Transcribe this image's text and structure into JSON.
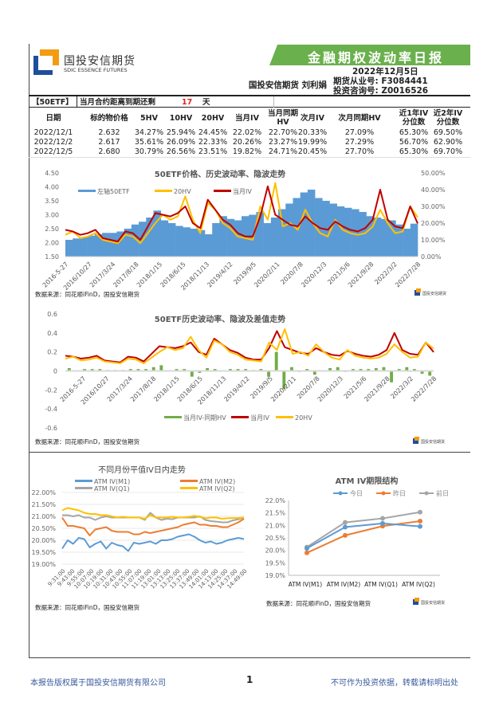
{
  "header": {
    "company_cn": "国投安信期货",
    "company_en": "SDIC ESSENCE FUTURES",
    "report_title": "金融期权波动率日报",
    "date": "2022年12月5日",
    "author": "国投安信期货 刘利娟",
    "license1": "期货从业号: F3084441",
    "license2": "投资咨询号: Z0016526"
  },
  "summary": {
    "underlying": "【50ETF】",
    "days_label": "当月合约距离到期还剩",
    "days": "17",
    "days_unit": "天",
    "accent": "#e02020"
  },
  "table": {
    "columns": [
      "日期",
      "标的物价格",
      "5HV",
      "10HV",
      "20HV",
      "当月IV",
      "当月同期HV",
      "次月IV",
      "次月同期HV",
      "近1年IV分位数",
      "近2年IV分位数"
    ],
    "rows": [
      [
        "2022/12/1",
        "2.632",
        "34.27%",
        "25.94%",
        "24.45%",
        "22.02%",
        "22.70%",
        "20.33%",
        "27.09%",
        "65.30%",
        "69.50%"
      ],
      [
        "2022/12/2",
        "2.617",
        "35.61%",
        "26.09%",
        "22.33%",
        "20.26%",
        "23.27%",
        "19.99%",
        "27.29%",
        "56.70%",
        "62.90%"
      ],
      [
        "2022/12/5",
        "2.680",
        "30.79%",
        "26.56%",
        "23.51%",
        "19.82%",
        "24.71%",
        "20.45%",
        "27.70%",
        "65.30%",
        "69.70%"
      ]
    ]
  },
  "source": "数据来源：同花顺iFinD，国投安信期货",
  "chart_data": [
    {
      "type": "bar+line",
      "title": "50ETF价格、历史波动率、隐波走势",
      "ylim_left": [
        1.5,
        4.5
      ],
      "ylim_right": [
        0,
        0.5
      ],
      "yticks_left": [
        "1.50",
        "2.00",
        "2.50",
        "3.00",
        "3.50",
        "4.00",
        "4.50"
      ],
      "yticks_right": [
        "0.00%",
        "10.00%",
        "20.00%",
        "30.00%",
        "40.00%",
        "50.00%"
      ],
      "xticks": [
        "2016-5-27",
        "2016/10/27",
        "2017/3/24",
        "2017/8/18",
        "2018/1/15",
        "2018/6/15",
        "2018/11/13",
        "2019/4/12",
        "2019/9/5",
        "2020/2/11",
        "2020/7/8",
        "2020/12/3",
        "2021/5/6",
        "2021/9/28",
        "2022/3/2",
        "2022/7/28"
      ],
      "series": [
        {
          "name": "左轴50ETF",
          "color": "#5b9bd5",
          "values": [
            2.1,
            2.15,
            2.2,
            2.25,
            2.3,
            2.35,
            2.35,
            2.4,
            2.5,
            2.65,
            2.75,
            2.9,
            3.15,
            2.8,
            2.7,
            2.6,
            2.55,
            2.5,
            2.45,
            2.3,
            2.7,
            2.95,
            2.85,
            2.8,
            2.95,
            3.0,
            3.1,
            2.7,
            2.9,
            3.2,
            3.4,
            3.6,
            3.8,
            3.9,
            3.6,
            3.5,
            3.4,
            3.3,
            3.25,
            3.2,
            3.1,
            2.95,
            2.9,
            2.85,
            2.8,
            2.65,
            2.5,
            2.68
          ]
        },
        {
          "name": "20HV",
          "color": "#ffc000",
          "values": [
            0.13,
            0.15,
            0.11,
            0.12,
            0.14,
            0.1,
            0.09,
            0.08,
            0.13,
            0.12,
            0.08,
            0.14,
            0.2,
            0.25,
            0.22,
            0.24,
            0.36,
            0.22,
            0.14,
            0.32,
            0.28,
            0.2,
            0.17,
            0.12,
            0.11,
            0.1,
            0.3,
            0.22,
            0.44,
            0.18,
            0.2,
            0.16,
            0.28,
            0.2,
            0.14,
            0.12,
            0.22,
            0.16,
            0.14,
            0.13,
            0.14,
            0.18,
            0.28,
            0.2,
            0.14,
            0.15,
            0.3,
            0.235
          ]
        },
        {
          "name": "当月IV",
          "color": "#c00000",
          "values": [
            0.16,
            0.15,
            0.13,
            0.14,
            0.16,
            0.11,
            0.1,
            0.09,
            0.15,
            0.14,
            0.1,
            0.18,
            0.26,
            0.25,
            0.24,
            0.26,
            0.3,
            0.2,
            0.17,
            0.34,
            0.28,
            0.22,
            0.19,
            0.14,
            0.12,
            0.12,
            0.24,
            0.42,
            0.25,
            0.22,
            0.19,
            0.18,
            0.24,
            0.2,
            0.17,
            0.16,
            0.21,
            0.18,
            0.16,
            0.15,
            0.17,
            0.22,
            0.4,
            0.22,
            0.18,
            0.17,
            0.3,
            0.198
          ]
        }
      ]
    },
    {
      "type": "bar+line",
      "title": "50ETF历史波动率、隐波及差值走势",
      "ylim": [
        -0.6,
        0.6
      ],
      "yticks": [
        "-0.6",
        "-0.4",
        "-0.2",
        "0",
        "0.2",
        "0.4",
        "0.6"
      ],
      "xticks": [
        "2016-5-27",
        "2016/10/27",
        "2017/3/24",
        "2017/8/18",
        "2018/1/15",
        "2018/6/15",
        "2018/11/13",
        "2019/4/12",
        "2019/9/5",
        "2020/2/11",
        "2020/7/8",
        "2020/12/3",
        "2021/5/6",
        "2021/9/28",
        "2022/3/2",
        "2022/7/28"
      ],
      "series": [
        {
          "name": "当月IV-同期HV",
          "color": "#70ad47",
          "values": [
            0.03,
            0.0,
            0.02,
            0.02,
            0.02,
            0.01,
            0.01,
            0.01,
            0.02,
            0.02,
            0.02,
            0.04,
            0.06,
            0.0,
            0.02,
            0.02,
            -0.06,
            -0.02,
            0.03,
            0.02,
            0.0,
            0.02,
            0.02,
            0.02,
            0.01,
            0.02,
            -0.06,
            0.2,
            -0.19,
            0.04,
            -0.01,
            0.02,
            -0.04,
            0.0,
            0.03,
            0.04,
            -0.01,
            0.02,
            0.02,
            0.02,
            0.03,
            0.04,
            -0.12,
            0.02,
            0.04,
            0.02,
            -0.03,
            -0.05
          ]
        },
        {
          "name": "当月IV",
          "color": "#c00000",
          "ref": "chart_data.0.series.2"
        },
        {
          "name": "20HV",
          "color": "#ffc000",
          "ref": "chart_data.0.series.1"
        }
      ]
    },
    {
      "type": "line",
      "title": "不同月份平值IV日内走势",
      "ylim": [
        0.19,
        0.22
      ],
      "yticks": [
        "19.00%",
        "19.50%",
        "20.00%",
        "20.50%",
        "21.00%",
        "21.50%",
        "22.00%"
      ],
      "xticks": [
        "9:31:00",
        "9:43:00",
        "9:55:00",
        "10:07:00",
        "10:19:00",
        "10:31:00",
        "10:43:00",
        "10:55:00",
        "11:07:00",
        "11:19:00",
        "13:01:00",
        "13:13:00",
        "13:25:00",
        "13:37:00",
        "13:49:00",
        "14:01:00",
        "14:13:00",
        "14:25:00",
        "14:37:00",
        "14:49:00"
      ],
      "series": [
        {
          "name": "ATM IV(M1)",
          "color": "#5b9bd5",
          "values": [
            0.1965,
            0.2,
            0.1985,
            0.201,
            0.2005,
            0.197,
            0.1985,
            0.1995,
            0.1965,
            0.199,
            0.198,
            0.1975,
            0.1955,
            0.199,
            0.1985,
            0.199,
            0.1995,
            0.1985,
            0.2,
            0.2,
            0.2005,
            0.2015,
            0.202,
            0.2025,
            0.2015,
            0.2,
            0.199,
            0.1995,
            0.1985,
            0.199,
            0.2,
            0.2005,
            0.201,
            0.2005
          ]
        },
        {
          "name": "ATM IV(M2)",
          "color": "#ed7d31",
          "values": [
            0.2095,
            0.206,
            0.206,
            0.2055,
            0.205,
            0.202,
            0.2045,
            0.205,
            0.2055,
            0.204,
            0.2035,
            0.2035,
            0.2035,
            0.2025,
            0.2025,
            0.2035,
            0.203,
            0.2035,
            0.204,
            0.2045,
            0.205,
            0.2055,
            0.2065,
            0.207,
            0.2075,
            0.2065,
            0.2065,
            0.206,
            0.206,
            0.2055,
            0.2055,
            0.2065,
            0.2075,
            0.209
          ]
        },
        {
          "name": "ATM IV(Q1)",
          "color": "#a5a5a5",
          "values": [
            0.2105,
            0.2105,
            0.21,
            0.2105,
            0.2095,
            0.2095,
            0.2085,
            0.2095,
            0.21,
            0.2095,
            0.2095,
            0.2095,
            0.2095,
            0.2095,
            0.2095,
            0.2085,
            0.2115,
            0.2095,
            0.2085,
            0.209,
            0.2088,
            0.2095,
            0.2095,
            0.2095,
            0.2095,
            0.21,
            0.2085,
            0.208,
            0.2078,
            0.2075,
            0.2075,
            0.2083,
            0.2088,
            0.2095
          ]
        },
        {
          "name": "ATM IV(Q2)",
          "color": "#ffc000",
          "values": [
            0.2125,
            0.2135,
            0.213,
            0.2125,
            0.2115,
            0.211,
            0.211,
            0.2105,
            0.2105,
            0.21,
            0.2095,
            0.2098,
            0.2095,
            0.2095,
            0.2095,
            0.209,
            0.2105,
            0.2095,
            0.2095,
            0.2095,
            0.2098,
            0.2095,
            0.2095,
            0.2098,
            0.2102,
            0.2098,
            0.2092,
            0.2095,
            0.2095,
            0.209,
            0.2092,
            0.2093,
            0.2093,
            0.2095
          ]
        }
      ]
    },
    {
      "type": "line",
      "title": "ATM IV期限结构",
      "ylim": [
        0.19,
        0.22
      ],
      "yticks": [
        "19.0%",
        "19.5%",
        "20.0%",
        "20.5%",
        "21.0%",
        "21.5%",
        "22.0%"
      ],
      "categories": [
        "ATM IV(M1)",
        "ATM IV(M2)",
        "ATM IV(Q1)",
        "ATM IV(Q2)"
      ],
      "series": [
        {
          "name": "今日",
          "color": "#5b9bd5",
          "values": [
            0.2008,
            0.2093,
            0.2108,
            0.2096
          ]
        },
        {
          "name": "昨日",
          "color": "#ed7d31",
          "values": [
            0.199,
            0.206,
            0.2097,
            0.2117
          ]
        },
        {
          "name": "前日",
          "color": "#a5a5a5",
          "values": [
            0.2013,
            0.2112,
            0.2128,
            0.2153
          ]
        }
      ]
    }
  ],
  "footer": {
    "left": "本报告版权属于国投安信期货有限公司",
    "page": "1",
    "right": "不可作为投资依据，转载请标明出处"
  }
}
